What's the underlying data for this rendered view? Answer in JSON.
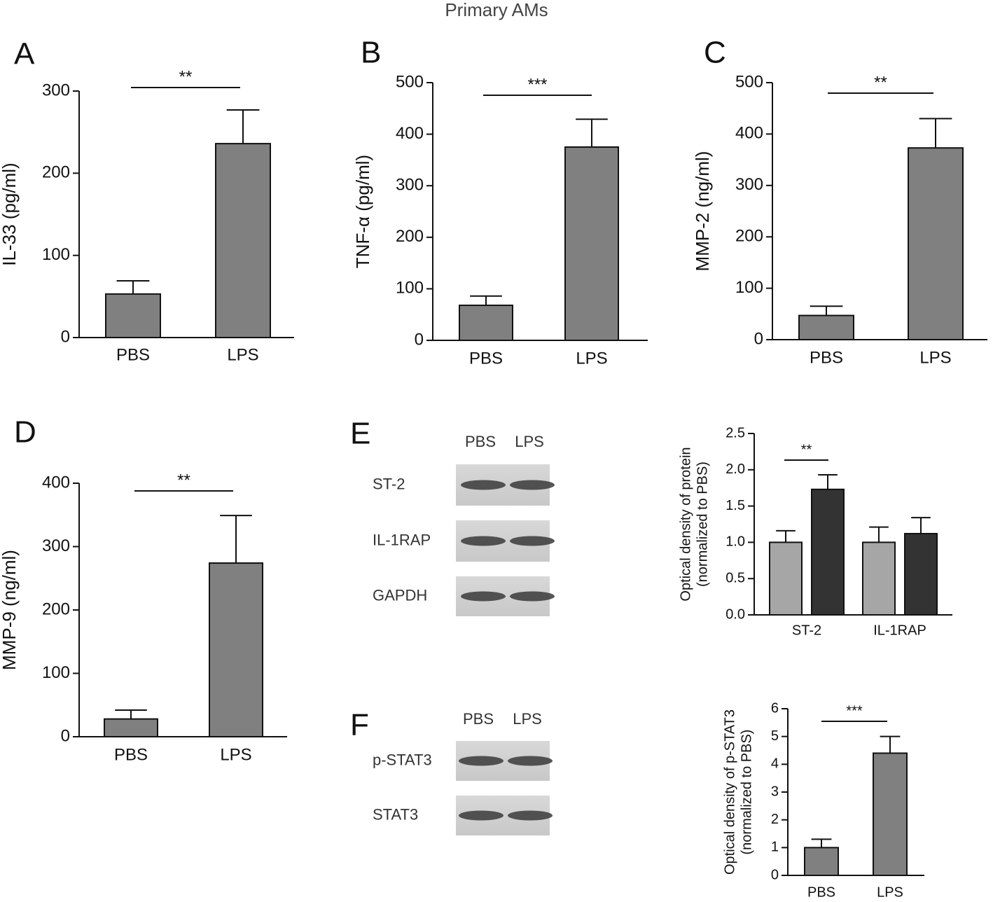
{
  "title": "Primary  AMs",
  "chart_data": [
    {
      "type": "bar",
      "panel": "A",
      "ylabel": "IL-33 (pg/ml)",
      "categories": [
        "PBS",
        "LPS"
      ],
      "values": [
        53,
        236
      ],
      "errors": [
        16,
        41
      ],
      "color": "#808080",
      "ylim": [
        0,
        300
      ],
      "yticks": [
        0,
        100,
        200,
        300
      ],
      "annotation": "**"
    },
    {
      "type": "bar",
      "panel": "B",
      "ylabel": "TNF-α (pg/ml)",
      "categories": [
        "PBS",
        "LPS"
      ],
      "values": [
        68,
        375
      ],
      "errors": [
        18,
        54
      ],
      "color": "#808080",
      "ylim": [
        0,
        500
      ],
      "yticks": [
        0,
        100,
        200,
        300,
        400,
        500
      ],
      "annotation": "***"
    },
    {
      "type": "bar",
      "panel": "C",
      "ylabel": "MMP-2 (ng/ml)",
      "categories": [
        "PBS",
        "LPS"
      ],
      "values": [
        47,
        373
      ],
      "errors": [
        18,
        57
      ],
      "color": "#808080",
      "ylim": [
        0,
        500
      ],
      "yticks": [
        0,
        100,
        200,
        300,
        400,
        500
      ],
      "annotation": "**"
    },
    {
      "type": "bar",
      "panel": "D",
      "ylabel": "MMP-9 (ng/ml)",
      "categories": [
        "PBS",
        "LPS"
      ],
      "values": [
        28,
        274
      ],
      "errors": [
        14,
        75
      ],
      "color": "#808080",
      "ylim": [
        0,
        400
      ],
      "yticks": [
        0,
        100,
        200,
        300,
        400
      ],
      "annotation": "**"
    },
    {
      "type": "grouped-bar",
      "ylabel": [
        "Optical density of protein",
        "(normalized to PBS)"
      ],
      "categories": [
        "ST-2",
        "IL-1RAP"
      ],
      "series": [
        {
          "color": "#a6a6a6",
          "values": [
            1.0,
            1.0
          ],
          "errors": [
            0.16,
            0.21
          ]
        },
        {
          "color": "#333333",
          "values": [
            1.73,
            1.12
          ],
          "errors": [
            0.2,
            0.22
          ]
        }
      ],
      "ylim": [
        0,
        2.5
      ],
      "yticks": [
        {
          "value": 0,
          "label": "0.0"
        },
        0.5,
        {
          "value": 1,
          "label": "1.0"
        },
        1.5,
        {
          "value": 2,
          "label": "2.0"
        },
        2.5
      ],
      "annotation": "**"
    },
    {
      "type": "bar",
      "ylabel": [
        "Optical density of p-STAT3",
        "(normalized to PBS)"
      ],
      "categories": [
        "PBS",
        "LPS"
      ],
      "values": [
        1.0,
        4.4
      ],
      "errors": [
        0.3,
        0.6
      ],
      "color": "#808080",
      "ylim": [
        0,
        6
      ],
      "yticks": [
        0,
        1,
        2,
        3,
        4,
        5,
        6
      ],
      "annotation": "***"
    }
  ],
  "blots": [
    {
      "panel": "E",
      "columns": [
        "PBS",
        "LPS"
      ],
      "rows": [
        "ST-2",
        "IL-1RAP",
        "GAPDH"
      ]
    },
    {
      "panel": "F",
      "columns": [
        "PBS",
        "LPS"
      ],
      "rows": [
        "p-STAT3",
        "STAT3"
      ]
    }
  ]
}
